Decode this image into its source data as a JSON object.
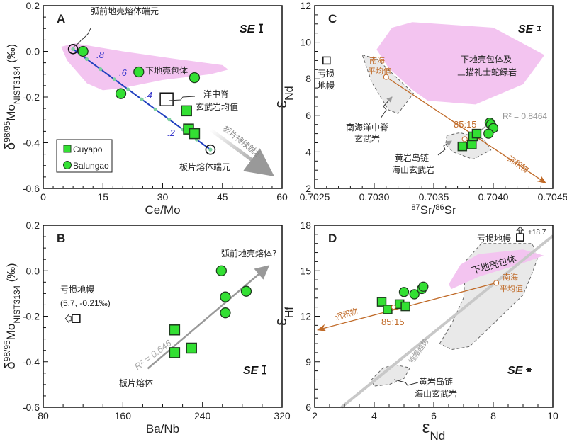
{
  "colors": {
    "marker_fill": "#33e033",
    "marker_stroke": "#1f3d1f",
    "mixing_line_A": "#1f3fbf",
    "fraction_label": "#3a3acc",
    "lower_crust_field": "#f3c4f0",
    "grey_field": "#e9e9e9",
    "mixing_line_isotope": "#c06a28",
    "trend_arrow": "#9a9a9a"
  },
  "chart_data": [
    {
      "panel": "A",
      "type": "scatter",
      "xlabel": "Ce/Mo",
      "ylabel": {
        "pre": "δ",
        "sup": "98/95",
        "main": "Mo",
        "sub": "NIST3134",
        "post": " (‰)"
      },
      "xlim": [
        0,
        60
      ],
      "ylim": [
        -0.6,
        0.2
      ],
      "xticks": [
        0,
        15,
        30,
        45,
        60
      ],
      "xtick_labels": [
        "0",
        "15",
        "30",
        "45",
        "60"
      ],
      "yticks": [
        0.2,
        0.0,
        -0.2,
        -0.4,
        -0.6
      ],
      "ytick_labels": [
        "0.2",
        "0.0",
        "-0.2",
        "-0.4",
        "-0.6"
      ],
      "series": [
        {
          "name": "Cuyapo",
          "marker": "square",
          "points": [
            [
              36,
              -0.26
            ],
            [
              36.5,
              -0.34
            ],
            [
              38,
              -0.36
            ]
          ]
        },
        {
          "name": "Balungao",
          "marker": "circle",
          "points": [
            [
              10,
              0.0
            ],
            [
              24,
              -0.09
            ],
            [
              38,
              -0.115
            ],
            [
              19.5,
              -0.185
            ]
          ]
        }
      ],
      "endmembers": [
        [
          7.5,
          0.01
        ],
        [
          42,
          -0.43
        ]
      ],
      "morb_mean": [
        31,
        -0.21
      ],
      "mixing_fractions": [
        ".8",
        ".6",
        ".4",
        ".2"
      ],
      "lower_crust_field": [
        [
          4.5,
          0.02
        ],
        [
          8,
          0.035
        ],
        [
          20,
          0.0
        ],
        [
          32,
          -0.03
        ],
        [
          45,
          -0.06
        ],
        [
          46.5,
          -0.08
        ],
        [
          42,
          -0.1
        ],
        [
          30,
          -0.125
        ],
        [
          20,
          -0.16
        ],
        [
          15,
          -0.17
        ],
        [
          11,
          -0.14
        ],
        [
          6,
          -0.04
        ]
      ],
      "legend": "bottom-left",
      "annotations": {
        "panel_letter": "A",
        "se": "SE",
        "forearc_melt": "弧前地壳熔体端元",
        "lower_crust": "下地壳包体",
        "morb_1": "洋中脊",
        "morb_2": "玄武岩均值",
        "dehydration": "板片持续脱水",
        "slab_melt": "板片熔体端元"
      }
    },
    {
      "panel": "B",
      "type": "scatter",
      "xlabel": "Ba/Nb",
      "ylabel": {
        "pre": "δ",
        "sup": "98/95",
        "main": "Mo",
        "sub": "NIST3134",
        "post": " (‰)"
      },
      "xlim": [
        80,
        320
      ],
      "ylim": [
        -0.6,
        0.2
      ],
      "xticks": [
        80,
        160,
        240,
        320
      ],
      "xtick_labels": [
        "80",
        "160",
        "240",
        "320"
      ],
      "yticks": [
        0.2,
        0.0,
        -0.2,
        -0.4,
        -0.6
      ],
      "ytick_labels": [
        "0.2",
        "0.0",
        "-0.2",
        "-0.4",
        "-0.6"
      ],
      "series": [
        {
          "name": "Cuyapo",
          "marker": "square",
          "points": [
            [
              212,
              -0.26
            ],
            [
              212,
              -0.36
            ],
            [
              229,
              -0.34
            ]
          ]
        },
        {
          "name": "Balungao",
          "marker": "circle",
          "points": [
            [
              259,
              0.0
            ],
            [
              263,
              -0.115
            ],
            [
              263,
              -0.185
            ],
            [
              284,
              -0.09
            ]
          ]
        }
      ],
      "depleted_mantle": [
        113,
        -0.21
      ],
      "trend": {
        "from": [
          185,
          -0.43
        ],
        "to": [
          306,
          0.02
        ],
        "r2_label": "R² = 0.646"
      },
      "annotations": {
        "panel_letter": "B",
        "se": "SE",
        "forearc_melt": "弧前地壳熔体?",
        "dm_1": "亏损地幔",
        "dm_2": "(5.7, -0.21‰)",
        "slab_melt": "板片熔体"
      }
    },
    {
      "panel": "C",
      "type": "scatter",
      "xlabel": {
        "sup1": "87",
        "main1": "Sr/",
        "sup2": "86",
        "main2": "Sr"
      },
      "ylabel": {
        "main": "ε",
        "sub": "Nd"
      },
      "xlim": [
        0.7025,
        0.7045
      ],
      "ylim": [
        2,
        12
      ],
      "xticks": [
        0.7025,
        0.703,
        0.7035,
        0.704,
        0.7045
      ],
      "xtick_labels": [
        "0.7025",
        "0.7030",
        "0.7035",
        "0.7040",
        "0.7045"
      ],
      "yticks": [
        12,
        10,
        8,
        6,
        4,
        2
      ],
      "ytick_labels": [
        "12",
        "10",
        "8",
        "6",
        "4",
        "2"
      ],
      "series": [
        {
          "name": "Cuyapo",
          "marker": "square",
          "points": [
            [
              0.70374,
              4.3
            ],
            [
              0.70382,
              4.4
            ],
            [
              0.70383,
              4.85
            ],
            [
              0.70386,
              5.0
            ]
          ]
        },
        {
          "name": "Balungao",
          "marker": "circle",
          "points": [
            [
              0.70397,
              5.6
            ],
            [
              0.70398,
              5.5
            ],
            [
              0.704,
              5.3
            ],
            [
              0.70396,
              5.0
            ]
          ]
        }
      ],
      "depleted_mantle": [
        0.7026,
        9.0
      ],
      "mixing": {
        "from": [
          0.7031,
          8.1
        ],
        "to": [
          0.70444,
          2.3
        ],
        "mix_point": [
          0.70376,
          4.7
        ]
      },
      "regression_r2": "R² = 0.8464",
      "lower_crust_field": [
        [
          0.70302,
          9.6
        ],
        [
          0.70315,
          10.8
        ],
        [
          0.70332,
          11.1
        ],
        [
          0.704,
          10.8
        ],
        [
          0.70443,
          9.3
        ],
        [
          0.70425,
          7.7
        ],
        [
          0.70385,
          6.6
        ],
        [
          0.70345,
          6.8
        ],
        [
          0.70332,
          7.4
        ],
        [
          0.70312,
          8.6
        ]
      ],
      "scs_morb_field": [
        [
          0.7029,
          9.3
        ],
        [
          0.70302,
          9.1
        ],
        [
          0.70333,
          7.2
        ],
        [
          0.7032,
          6.1
        ],
        [
          0.70312,
          6.3
        ],
        [
          0.70298,
          7.8
        ]
      ],
      "huangyan_field": [
        [
          0.70361,
          4.9
        ],
        [
          0.70372,
          5.05
        ],
        [
          0.70392,
          4.7
        ],
        [
          0.70398,
          4.1
        ],
        [
          0.70383,
          3.6
        ],
        [
          0.70366,
          4.0
        ],
        [
          0.7036,
          4.4
        ]
      ],
      "annotations": {
        "panel_letter": "C",
        "se": "SE",
        "field_1": "下地壳包体及",
        "field_2": "三描礼士蛇绿岩",
        "dm_1": "亏损",
        "dm_2": "地幔",
        "scs_1": "南海",
        "scs_2": "平均值",
        "morb_1": "南海洋中脊",
        "morb_2": "玄武岩",
        "ratio": "85:15",
        "hy_1": "黄岩岛链",
        "hy_2": "海山玄武岩",
        "sediment": "沉积物"
      }
    },
    {
      "panel": "D",
      "type": "scatter",
      "xlabel": {
        "main": "ε",
        "sub": "Nd"
      },
      "ylabel": {
        "main": "ε",
        "sub": "Hf"
      },
      "xlim": [
        2,
        10
      ],
      "ylim": [
        6,
        18
      ],
      "xticks": [
        2,
        4,
        6,
        8,
        10
      ],
      "xtick_labels": [
        "2",
        "4",
        "6",
        "8",
        "10"
      ],
      "yticks": [
        18,
        15,
        12,
        9,
        6
      ],
      "ytick_labels": [
        "18",
        "15",
        "12",
        "9",
        "6"
      ],
      "series": [
        {
          "name": "Cuyapo",
          "marker": "square",
          "points": [
            [
              4.25,
              12.95
            ],
            [
              4.45,
              12.45
            ],
            [
              4.85,
              12.8
            ],
            [
              5.05,
              12.65
            ]
          ]
        },
        {
          "name": "Balungao",
          "marker": "circle",
          "points": [
            [
              5.0,
              13.6
            ],
            [
              5.35,
              13.45
            ],
            [
              5.6,
              13.8
            ],
            [
              5.65,
              13.95
            ]
          ]
        }
      ],
      "depleted_mantle": [
        8.9,
        17.2
      ],
      "dm_value": "+18.7",
      "mixing": {
        "from": [
          8.1,
          14.2
        ],
        "to": [
          2.1,
          11.1
        ],
        "mix_point": [
          4.65,
          12.6
        ]
      },
      "mantle_trend": {
        "from": [
          2.9,
          6.0
        ],
        "to": [
          10,
          17.3
        ]
      },
      "lower_crust_field": [
        [
          6.5,
          14.1
        ],
        [
          6.9,
          15.4
        ],
        [
          7.5,
          16.1
        ],
        [
          9,
          16.4
        ],
        [
          9.7,
          16.0
        ],
        [
          9,
          15.5
        ],
        [
          7.5,
          14.6
        ],
        [
          6.6,
          13.8
        ]
      ],
      "scs_field": [
        [
          6.2,
          10.2
        ],
        [
          6.6,
          11.5
        ],
        [
          7.0,
          13.2
        ],
        [
          7.1,
          15.7
        ],
        [
          7.6,
          16.8
        ],
        [
          9.3,
          16.8
        ],
        [
          9.5,
          15.9
        ],
        [
          9.3,
          14.8
        ],
        [
          9.0,
          13.4
        ],
        [
          8,
          11.5
        ],
        [
          7.2,
          10.0
        ],
        [
          6.6,
          9.8
        ]
      ],
      "huangyan_field": [
        [
          3.9,
          7.8
        ],
        [
          4.3,
          8.6
        ],
        [
          4.7,
          8.8
        ],
        [
          5.2,
          8.6
        ],
        [
          5.0,
          7.9
        ],
        [
          4.5,
          7.5
        ],
        [
          4.0,
          7.4
        ]
      ],
      "annotations": {
        "panel_letter": "D",
        "se": "SE",
        "dm": "亏损地幔",
        "lower_crust": "下地壳包体",
        "scs_1": "南海",
        "scs_2": "平均值",
        "sediment": "沉积物",
        "ratio": "85:15",
        "trend": "地幔趋势",
        "hy_1": "黄岩岛链",
        "hy_2": "海山玄武岩"
      }
    }
  ]
}
